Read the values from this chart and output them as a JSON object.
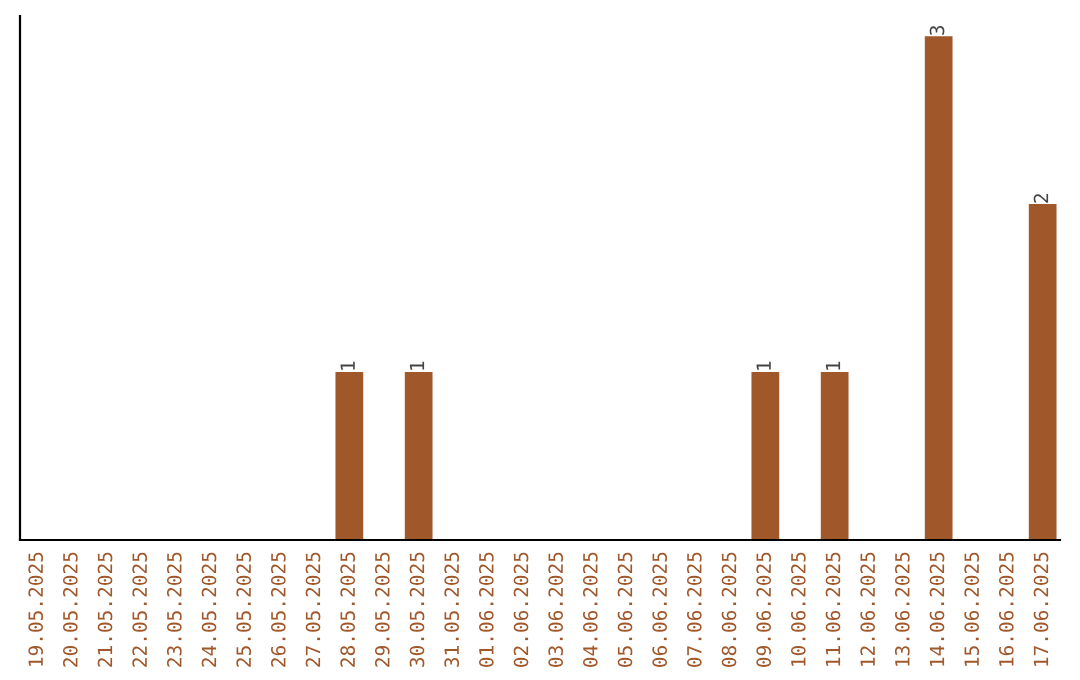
{
  "chart_data": {
    "type": "bar",
    "categories": [
      "19.05.2025",
      "20.05.2025",
      "21.05.2025",
      "22.05.2025",
      "23.05.2025",
      "24.05.2025",
      "25.05.2025",
      "26.05.2025",
      "27.05.2025",
      "28.05.2025",
      "29.05.2025",
      "30.05.2025",
      "31.05.2025",
      "01.06.2025",
      "02.06.2025",
      "03.06.2025",
      "04.06.2025",
      "05.06.2025",
      "06.06.2025",
      "07.06.2025",
      "08.06.2025",
      "09.06.2025",
      "10.06.2025",
      "11.06.2025",
      "12.06.2025",
      "13.06.2025",
      "14.06.2025",
      "15.06.2025",
      "16.06.2025",
      "17.06.2025"
    ],
    "values": [
      0,
      0,
      0,
      0,
      0,
      0,
      0,
      0,
      0,
      1,
      0,
      1,
      0,
      0,
      0,
      0,
      0,
      0,
      0,
      0,
      0,
      1,
      0,
      1,
      0,
      0,
      3,
      0,
      0,
      2
    ],
    "value_labels": [
      null,
      null,
      null,
      null,
      null,
      null,
      null,
      null,
      null,
      "1",
      null,
      "1",
      null,
      null,
      null,
      null,
      null,
      null,
      null,
      null,
      null,
      "1",
      null,
      "1",
      null,
      null,
      "3",
      null,
      null,
      "2"
    ],
    "color": "#a0572a",
    "grid": false,
    "legend": false
  }
}
